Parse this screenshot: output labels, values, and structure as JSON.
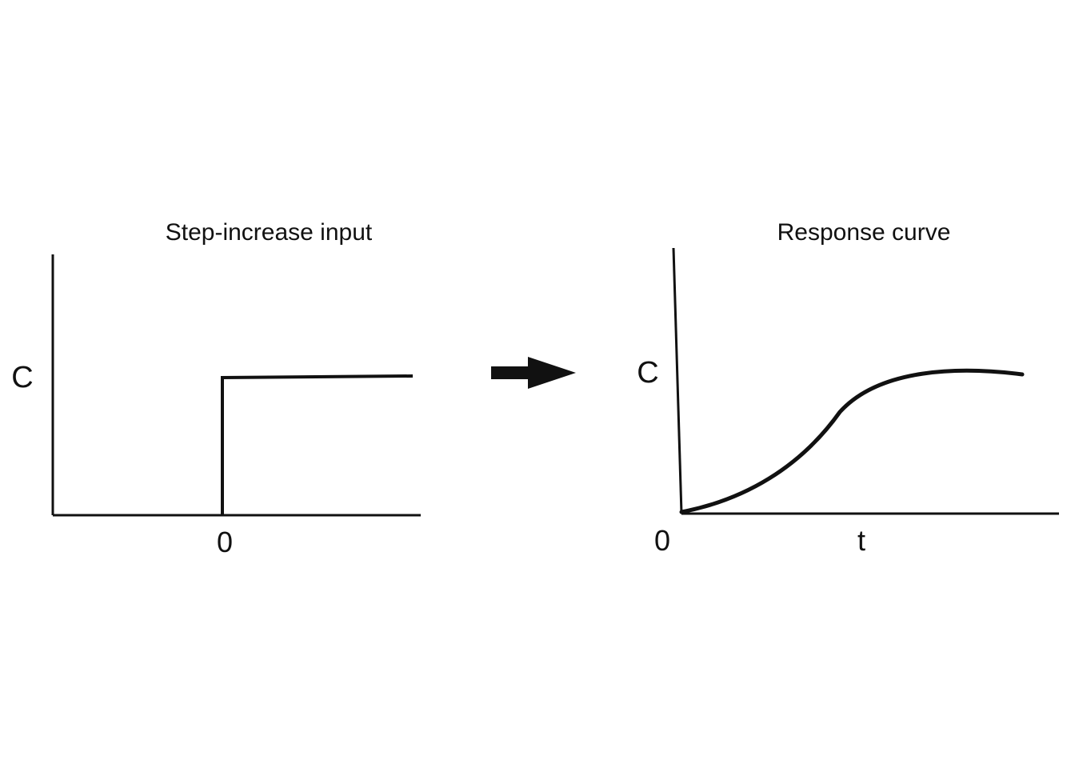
{
  "step_panel": {
    "title": "Step-increase input",
    "y_label": "C",
    "x_tick": "0"
  },
  "response_panel": {
    "title": "Response curve",
    "y_label": "C",
    "x_tick_origin": "0",
    "x_label": "t"
  },
  "colors": {
    "ink": "#111111",
    "background": "#ffffff"
  }
}
